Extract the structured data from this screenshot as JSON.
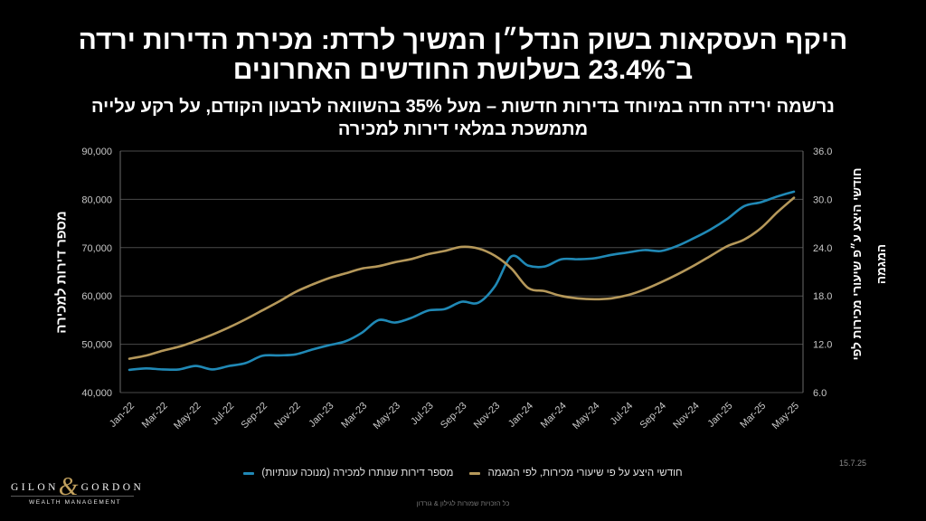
{
  "title": {
    "line1": "היקף העסקאות בשוק הנדל״ן המשיך לרדת: מכירת הדירות ירדה",
    "line2": "ב־23.4% בשלושת החודשים האחרונים"
  },
  "subtitle": {
    "line1": "נרשמה ירידה חדה במיוחד בדירות חדשות – מעל 35% בהשוואה לרבעון הקודם, על רקע עלייה",
    "line2": "מתמשכת במלאי דירות למכירה"
  },
  "chart_data": {
    "type": "line",
    "x": [
      "2022-01",
      "2022-02",
      "2022-03",
      "2022-04",
      "2022-05",
      "2022-06",
      "2022-07",
      "2022-08",
      "2022-09",
      "2022-10",
      "2022-11",
      "2022-12",
      "2023-01",
      "2023-02",
      "2023-03",
      "2023-04",
      "2023-05",
      "2023-06",
      "2023-07",
      "2023-08",
      "2023-09",
      "2023-10",
      "2023-11",
      "2023-12",
      "2024-01",
      "2024-02",
      "2024-03",
      "2024-04",
      "2024-05",
      "2024-06",
      "2024-07",
      "2024-08",
      "2024-09",
      "2024-10",
      "2024-11",
      "2024-12",
      "2025-01",
      "2025-02",
      "2025-03",
      "2025-04",
      "2025-05"
    ],
    "x_ticks": [
      "Jan-22",
      "Mar-22",
      "May-22",
      "Jul-22",
      "Sep-22",
      "Nov-22",
      "Jan-23",
      "Mar-23",
      "May-23",
      "Jul-23",
      "Sep-23",
      "Nov-23",
      "Jan-24",
      "Mar-24",
      "May-24",
      "Jul-24",
      "Sep-24",
      "Nov-24",
      "Jan-25",
      "Mar-25",
      "May-25"
    ],
    "ylabel": "מספר דירות למכירה",
    "ylim": [
      40000,
      90000
    ],
    "y_ticks": [
      "40,000",
      "50,000",
      "60,000",
      "70,000",
      "80,000",
      "90,000"
    ],
    "y2label_lines": [
      "חודשי היצע ע״פ שיעורי מכירות לפי",
      "המגמה"
    ],
    "y2lim": [
      6,
      36
    ],
    "y2_ticks": [
      "6.0",
      "12.0",
      "18.0",
      "24.0",
      "30.0",
      "36.0"
    ],
    "grid": {
      "horizontal": true,
      "vertical": false
    },
    "legend": "bottom",
    "series": [
      {
        "name": "מספר דירות שנותרו למכירה (מנוכה עונתיות)",
        "axis": "left",
        "color": "#2089b6",
        "values": [
          44700,
          45000,
          44800,
          44800,
          45500,
          44800,
          45500,
          46100,
          47600,
          47700,
          47900,
          48900,
          49800,
          50600,
          52400,
          55000,
          54500,
          55500,
          57000,
          57300,
          58800,
          58600,
          62000,
          68200,
          66300,
          66100,
          67600,
          67600,
          67800,
          68500,
          69000,
          69500,
          69300,
          70400,
          72000,
          73800,
          76000,
          78600,
          79400,
          80600,
          81600
        ]
      },
      {
        "name": "חודשי היצע על פי שיעורי מכירות, לפי המגמה",
        "axis": "right",
        "color": "#b5985a",
        "values": [
          10.2,
          10.6,
          11.2,
          11.7,
          12.4,
          13.2,
          14.1,
          15.1,
          16.2,
          17.3,
          18.5,
          19.4,
          20.2,
          20.8,
          21.4,
          21.7,
          22.2,
          22.6,
          23.2,
          23.6,
          24.1,
          23.9,
          23.0,
          21.4,
          19.0,
          18.6,
          18.0,
          17.7,
          17.6,
          17.7,
          18.1,
          18.8,
          19.7,
          20.7,
          21.8,
          23.0,
          24.2,
          25.0,
          26.4,
          28.4,
          30.2
        ]
      }
    ]
  },
  "footer": {
    "date": "15.7.25",
    "copyright": "כל הזכויות שמורות לגילון & גורדון"
  },
  "brand": {
    "left": "GILON",
    "amp": "&",
    "right": "GORDON",
    "tagline": "WEALTH MANAGEMENT",
    "accent": "#c2a15e"
  }
}
